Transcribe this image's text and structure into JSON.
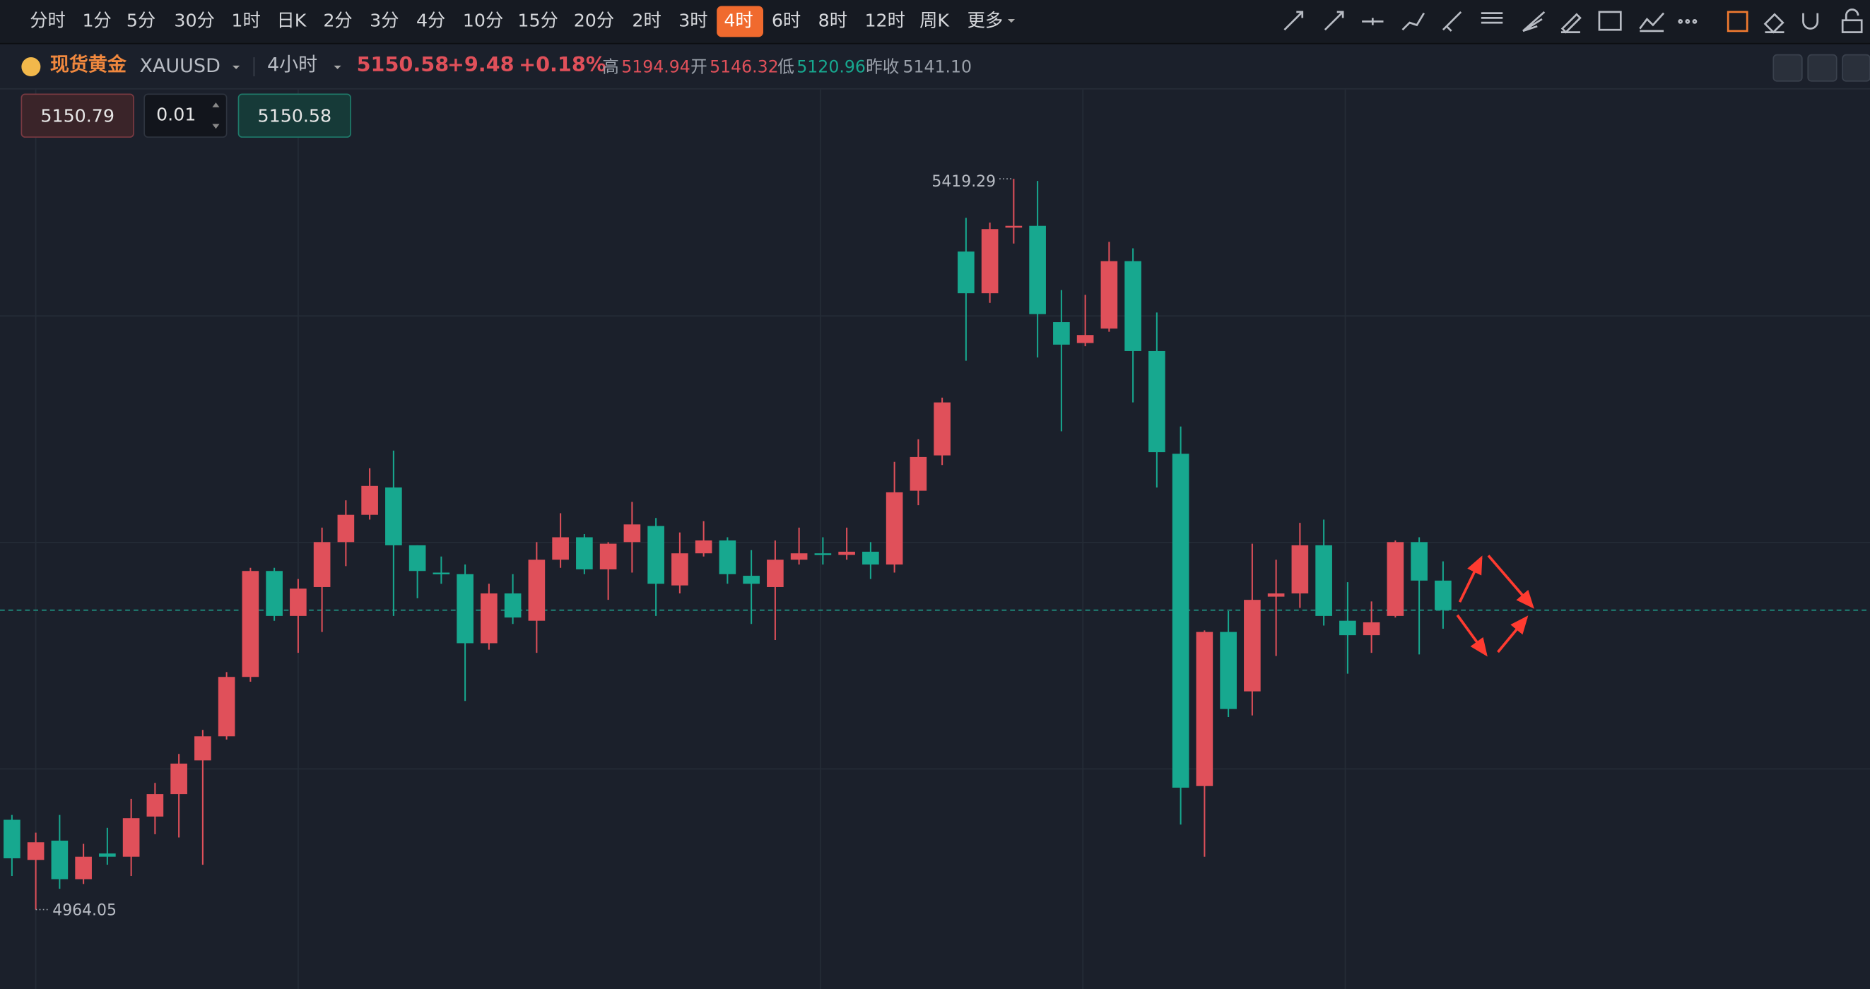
{
  "toolbar": {
    "intervals": [
      "分时",
      "1分",
      "5分",
      "30分",
      "1时",
      "日K",
      "2分",
      "3分",
      "4分",
      "10分",
      "15分",
      "20分",
      "2时",
      "3时",
      "4时",
      "6时",
      "8时",
      "12时",
      "周K"
    ],
    "active_interval": "4时",
    "more": "更多"
  },
  "symbol": {
    "name": "现货黄金",
    "code": "XAUUSD",
    "period": "4小时",
    "price": "5150.58",
    "change": "+9.48",
    "change_pct": "+0.18%",
    "stats": [
      {
        "label": "高",
        "value": "5194.94",
        "color": "#e0505a"
      },
      {
        "label": "开",
        "value": "5146.32",
        "color": "#e0505a"
      },
      {
        "label": "低",
        "value": "5120.96",
        "color": "#17a88f"
      },
      {
        "label": "昨收",
        "value": "5141.10",
        "color": "#9aa0aa"
      }
    ]
  },
  "order": {
    "sell": "5150.79",
    "qty": "0.01",
    "buy": "5150.58"
  },
  "chart_data": {
    "type": "candlestick",
    "up_color": "#e0505a",
    "down_color": "#17a88f",
    "open": [
      5020,
      4995,
      5007,
      4983,
      4999,
      4997,
      5022,
      5036,
      5057,
      5072,
      5109,
      5175,
      5147,
      5165,
      5193,
      5210,
      5227,
      5191,
      5174,
      5173,
      5130,
      5161,
      5144,
      5182,
      5196,
      5176,
      5193,
      5203,
      5166,
      5186,
      5194,
      5172,
      5165,
      5182,
      5186,
      5185,
      5187,
      5179,
      5225,
      5247,
      5374,
      5348,
      5389,
      5390,
      5330,
      5317,
      5326,
      5368,
      5312,
      5248,
      5041,
      5137,
      5100,
      5159,
      5161,
      5191,
      5144,
      5135,
      5147,
      5193,
      5169
    ],
    "high": [
      5023,
      5012,
      5023,
      5005,
      5015,
      5033,
      5043,
      5061,
      5076,
      5112,
      5177,
      5177,
      5170,
      5202,
      5219,
      5239,
      5250,
      5191,
      5184,
      5179,
      5167,
      5173,
      5193,
      5211,
      5198,
      5193,
      5218,
      5208,
      5199,
      5206,
      5196,
      5188,
      5194,
      5202,
      5196,
      5202,
      5193,
      5243,
      5257,
      5283,
      5395,
      5392,
      5419.29,
      5418,
      5350,
      5347,
      5380,
      5376,
      5336,
      5265,
      5138,
      5150,
      5192,
      5182,
      5205,
      5207,
      5168,
      5156,
      5194,
      5196,
      5181
    ],
    "low": [
      4985,
      4964.05,
      4977,
      4980,
      4992,
      4985,
      5011,
      5009,
      4992,
      5070,
      5106,
      5144,
      5124,
      5137,
      5178,
      5207,
      5147,
      5158,
      5167,
      5094,
      5126,
      5142,
      5124,
      5177,
      5173,
      5157,
      5174,
      5147,
      5161,
      5184,
      5167,
      5142,
      5132,
      5179,
      5179,
      5182,
      5170,
      5174,
      5216,
      5241,
      5306,
      5342,
      5379,
      5308,
      5262,
      5315,
      5324,
      5280,
      5227,
      5017,
      4997,
      5084,
      5085,
      5122,
      5152,
      5141,
      5111,
      5124,
      5146,
      5123,
      5139
    ],
    "close": [
      4996,
      5006,
      4983,
      4997,
      4997,
      5021,
      5036,
      5055,
      5072,
      5109,
      5175,
      5147,
      5164,
      5193,
      5210,
      5228,
      5191,
      5175,
      5173,
      5130,
      5161,
      5146,
      5182,
      5196,
      5176,
      5192,
      5204,
      5167,
      5186,
      5194,
      5173,
      5167,
      5182,
      5186,
      5185,
      5187,
      5179,
      5224,
      5246,
      5280,
      5348,
      5388,
      5390,
      5335,
      5316,
      5322,
      5368,
      5312,
      5249,
      5040,
      5137,
      5089,
      5157,
      5161,
      5191,
      5147,
      5135,
      5143,
      5193,
      5169,
      5150.58
    ]
  }
}
